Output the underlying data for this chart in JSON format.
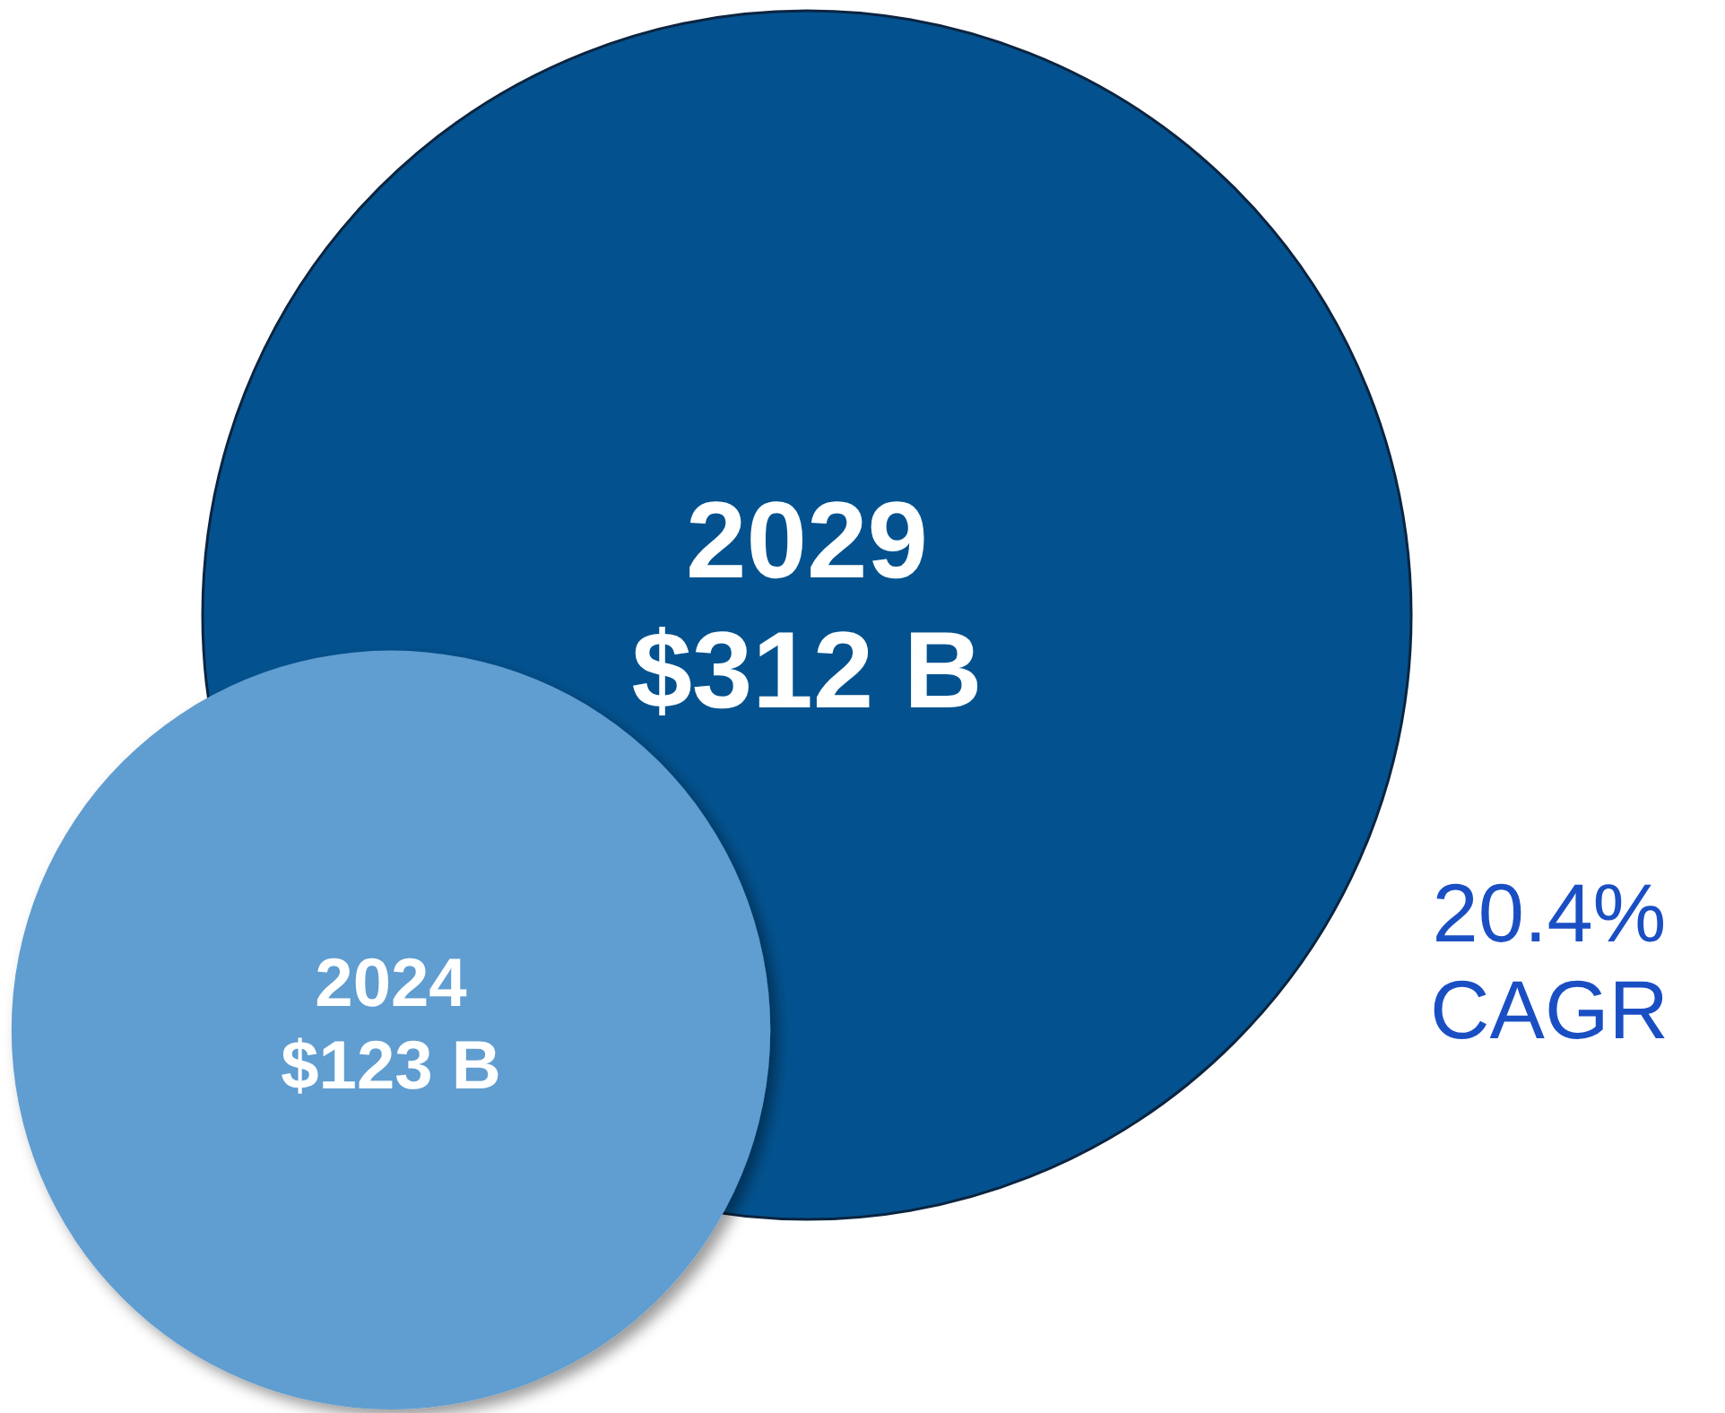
{
  "chart_data": {
    "type": "other",
    "categories": [
      "2024",
      "2029"
    ],
    "values": [
      123,
      312
    ],
    "value_labels": [
      "$123 B",
      "$312 B"
    ],
    "colors": [
      "#619dd0",
      "#03528f"
    ],
    "annotations": [
      "20.4% CAGR"
    ]
  }
}
